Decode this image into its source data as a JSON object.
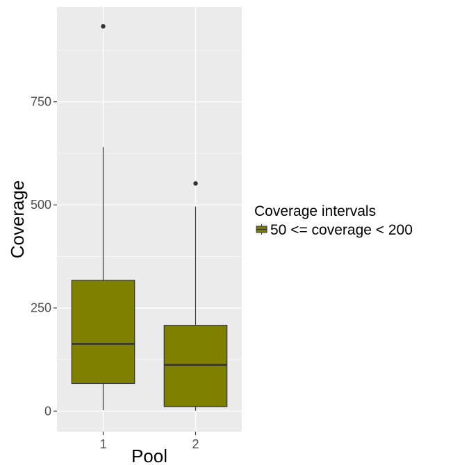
{
  "chart_data": {
    "type": "boxplot",
    "xlabel": "Pool",
    "ylabel": "Coverage",
    "categories": [
      "1",
      "2"
    ],
    "ylim": [
      -50,
      980
    ],
    "yticks": [
      0,
      250,
      500,
      750
    ],
    "ytick_labels": [
      "0",
      "250",
      "500",
      "750"
    ],
    "grid": true,
    "legend": {
      "title": "Coverage intervals",
      "position": "right",
      "entries": [
        {
          "label": "50  <=  coverage  <  200",
          "color": "#808000"
        }
      ]
    },
    "series": [
      {
        "name": "50  <=  coverage  <  200",
        "color": "#808000",
        "boxes": [
          {
            "category": "1",
            "whisker_low": 2,
            "q1": 67,
            "median": 163,
            "q3": 317,
            "whisker_high": 640,
            "outliers": [
              933
            ]
          },
          {
            "category": "2",
            "whisker_low": 1,
            "q1": 11,
            "median": 112,
            "q3": 208,
            "whisker_high": 496,
            "outliers": [
              552
            ]
          }
        ]
      }
    ]
  }
}
